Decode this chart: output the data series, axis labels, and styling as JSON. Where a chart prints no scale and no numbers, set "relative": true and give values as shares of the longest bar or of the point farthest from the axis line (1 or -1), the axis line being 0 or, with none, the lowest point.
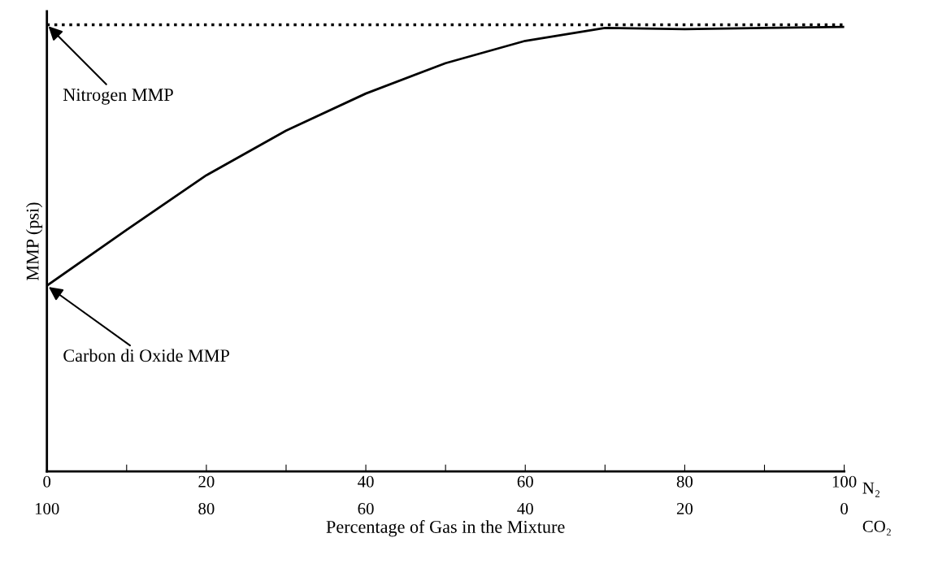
{
  "chart_data": {
    "type": "line",
    "relative": true,
    "ylabel": "MMP (psi)",
    "xlabel": "Percentage of Gas in the Mixture",
    "x": [
      0,
      10,
      20,
      30,
      40,
      50,
      60,
      70,
      80,
      90,
      100
    ],
    "series": [
      {
        "color": "#000000",
        "line_style": "solid",
        "values": [
          0.416,
          0.541,
          0.663,
          0.763,
          0.846,
          0.914,
          0.964,
          0.993,
          0.99,
          0.993,
          0.995
        ]
      },
      {
        "color": "#000000",
        "line_style": "dotted",
        "values": [
          1,
          1,
          1,
          1,
          1,
          1,
          1,
          1,
          1,
          1,
          1
        ]
      }
    ],
    "xlim": [
      0,
      100
    ],
    "xticks": [
      0,
      {
        "value": 10,
        "label": null
      },
      20,
      {
        "value": 30,
        "label": null
      },
      40,
      {
        "value": 50,
        "label": null
      },
      60,
      {
        "value": 70,
        "label": null
      },
      80,
      {
        "value": 90,
        "label": null
      },
      100
    ],
    "x2lim": [
      100,
      0
    ],
    "x2ticks": [
      100,
      80,
      60,
      40,
      20,
      0
    ],
    "annotations": [
      {
        "text": "Nitrogen MMP",
        "x": 0,
        "y": 1
      },
      {
        "text": "Carbon di Oxide MMP",
        "x": 0,
        "y": 0.416
      },
      "N₂",
      "CO₂"
    ],
    "grid": false,
    "marker": "none"
  }
}
